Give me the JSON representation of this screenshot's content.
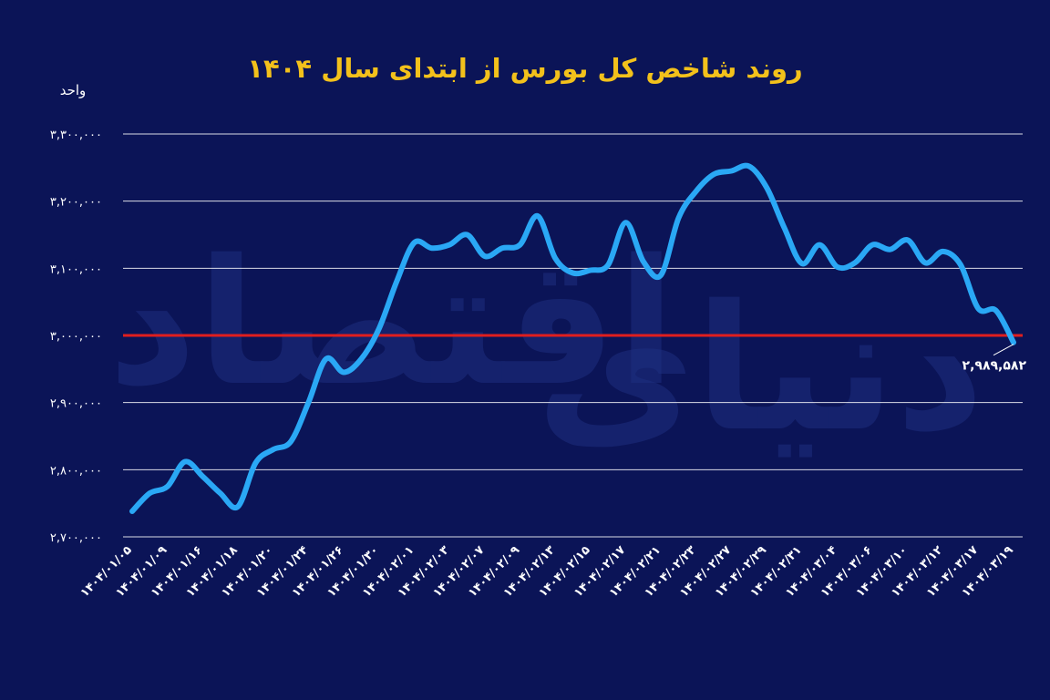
{
  "chart_data": {
    "type": "line",
    "title": "روند شاخص کل بورس از ابتدای سال ۱۴۰۴",
    "ylabel": "واحد",
    "ylim": [
      2700000,
      3300000
    ],
    "ytick_values": [
      2700000,
      2800000,
      2900000,
      3000000,
      3100000,
      3200000,
      3300000
    ],
    "ytick_labels": [
      "۲,۷۰۰,۰۰۰",
      "۲,۸۰۰,۰۰۰",
      "۲,۹۰۰,۰۰۰",
      "۳,۰۰۰,۰۰۰",
      "۳,۱۰۰,۰۰۰",
      "۳,۲۰۰,۰۰۰",
      "۳,۳۰۰,۰۰۰"
    ],
    "xtick_labels": [
      "۱۴۰۴/۰۱/۰۵",
      "۱۴۰۴/۰۱/۰۹",
      "۱۴۰۴/۰۱/۱۶",
      "۱۴۰۴/۰۱/۱۸",
      "۱۴۰۴/۰۱/۲۰",
      "۱۴۰۴/۰۱/۲۴",
      "۱۴۰۴/۰۱/۲۶",
      "۱۴۰۴/۰۱/۳۰",
      "۱۴۰۴/۰۲/۰۱",
      "۱۴۰۴/۰۲/۰۳",
      "۱۴۰۴/۰۲/۰۷",
      "۱۴۰۴/۰۲/۰۹",
      "۱۴۰۴/۰۲/۱۳",
      "۱۴۰۴/۰۲/۱۵",
      "۱۴۰۴/۰۲/۱۷",
      "۱۴۰۴/۰۲/۲۱",
      "۱۴۰۴/۰۲/۲۳",
      "۱۴۰۴/۰۲/۲۷",
      "۱۴۰۴/۰۲/۲۹",
      "۱۴۰۴/۰۲/۳۱",
      "۱۴۰۴/۰۳/۰۴",
      "۱۴۰۴/۰۳/۰۶",
      "۱۴۰۴/۰۳/۱۰",
      "۱۴۰۴/۰۳/۱۲",
      "۱۴۰۴/۰۳/۱۷",
      "۱۴۰۴/۰۳/۱۹"
    ],
    "reference_line": {
      "value": 3000000,
      "color": "#e01e1e"
    },
    "line_color": "#2aa8f5",
    "grid": true,
    "series": [
      {
        "values": [
          2738000,
          2765000,
          2775000,
          2812000,
          2790000,
          2765000,
          2745000,
          2810000,
          2830000,
          2842000,
          2900000,
          2965000,
          2945000,
          2965000,
          3010000,
          3080000,
          3138000,
          3130000,
          3135000,
          3150000,
          3118000,
          3130000,
          3135000,
          3178000,
          3115000,
          3093000,
          3097000,
          3105000,
          3168000,
          3110000,
          3090000,
          3175000,
          3215000,
          3240000,
          3245000,
          3252000,
          3220000,
          3160000,
          3107000,
          3135000,
          3102000,
          3108000,
          3135000,
          3128000,
          3142000,
          3108000,
          3125000,
          3105000,
          3040000,
          3037000,
          2989582
        ]
      }
    ],
    "last_value_label": "۲,۹۸۹,۵۸۲"
  },
  "watermark": {
    "left_text": "اقتصاد",
    "right_text": "دنیای"
  },
  "colors": {
    "background": "#0b1457",
    "title": "#f3c11b",
    "grid": "#ffffff",
    "text": "#ffffff"
  }
}
